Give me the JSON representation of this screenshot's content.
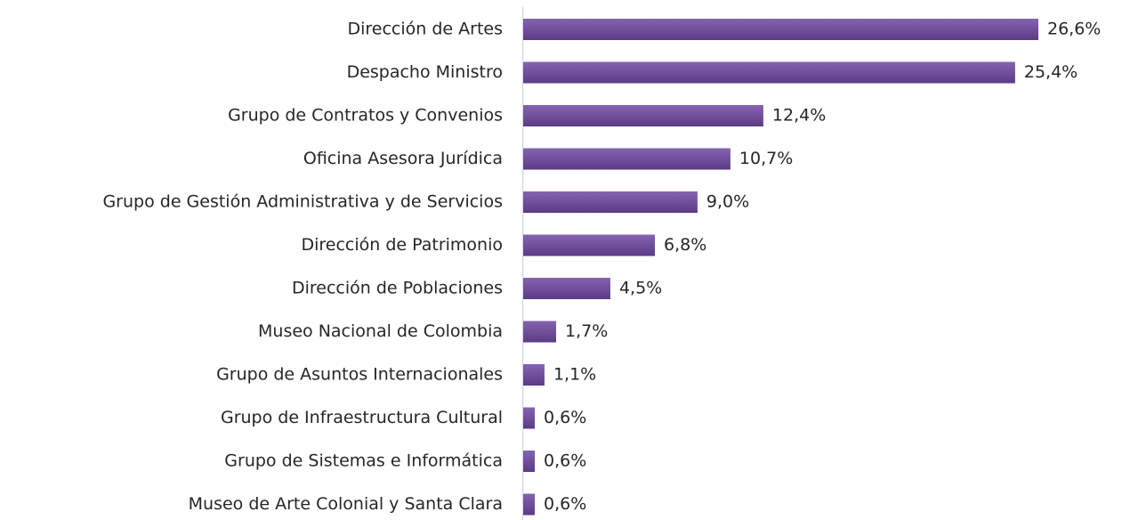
{
  "chart_data": {
    "type": "bar",
    "orientation": "horizontal",
    "categories": [
      "Dirección de Artes",
      "Despacho Ministro",
      "Grupo de Contratos y Convenios",
      "Oficina Asesora Jurídica",
      "Grupo de Gestión Administrativa y de Servicios",
      "Dirección de Patrimonio",
      "Dirección de Poblaciones",
      "Museo Nacional de Colombia",
      "Grupo de Asuntos Internacionales",
      "Grupo de Infraestructura Cultural",
      "Grupo de Sistemas e Informática",
      "Museo de Arte Colonial y Santa Clara"
    ],
    "values": [
      26.6,
      25.4,
      12.4,
      10.7,
      9.0,
      6.8,
      4.5,
      1.7,
      1.1,
      0.6,
      0.6,
      0.6
    ],
    "value_labels": [
      "26,6%",
      "25,4%",
      "12,4%",
      "10,7%",
      "9,0%",
      "6,8%",
      "4,5%",
      "1,7%",
      "1,1%",
      "0,6%",
      "0,6%",
      "0,6%"
    ],
    "color": "#6b4a98"
  }
}
